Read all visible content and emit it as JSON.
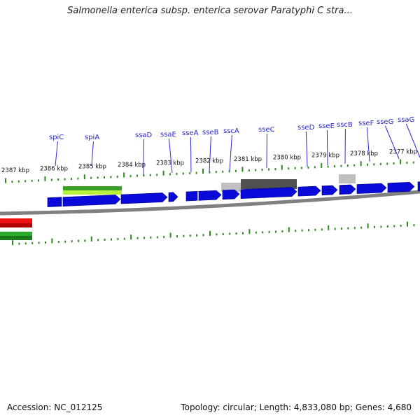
{
  "title": "Salmonella enterica subsp. enterica serovar Paratyphi C stra...",
  "footer": {
    "accession": "Accession: NC_012125",
    "summary": "Topology: circular; Length: 4,833,080 bp; Genes: 4,680"
  },
  "colors": {
    "gene": "#0a0ad8",
    "tick": "#2f8a1e",
    "label_line": "#2a2ae0",
    "label_text": "#2626c8",
    "backbone": "#808080",
    "feature_green": "#3aa02a",
    "feature_green_light": "#b8f040",
    "feature_gray": "#505050",
    "feature_gray_light": "#c0c0c0",
    "track_red": "#ee1111",
    "track_green": "#2aaa2a"
  },
  "icons": [
    "clockwise-arrow-gene-shapes"
  ],
  "scale_labels": [
    "2387 kbp",
    "2386 kbp",
    "2385 kbp",
    "2384 kbp",
    "2383 kbp",
    "2382 kbp",
    "2381 kbp",
    "2380 kbp",
    "2379 kbp",
    "2378 kbp",
    "2377 kbp"
  ],
  "gene_labels": [
    "spiC",
    "spiA",
    "ssaD",
    "ssaE",
    "sseA",
    "sseB",
    "sscA",
    "sseC",
    "sseD",
    "sseE",
    "sscB",
    "sseF",
    "sseG",
    "ssaG"
  ]
}
